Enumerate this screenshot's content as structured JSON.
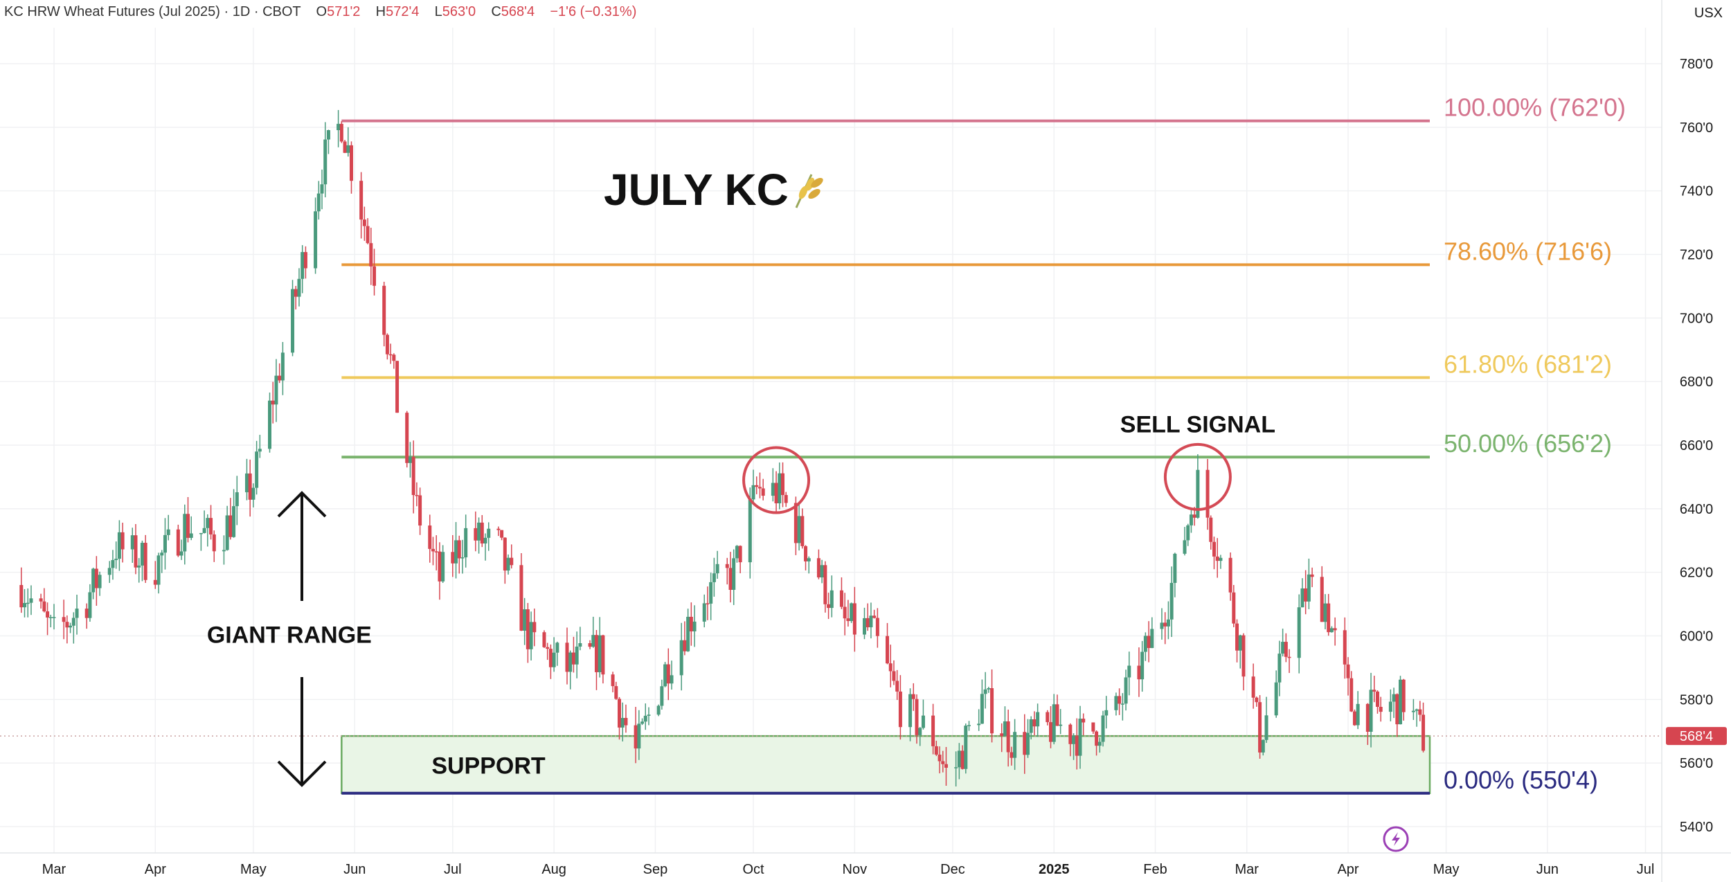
{
  "header": {
    "symbol_info": "KC HRW Wheat Futures (Jul 2025) · 1D · CBOT",
    "o_label": "O",
    "o_value": "571'2",
    "h_label": "H",
    "h_value": "572'4",
    "l_label": "L",
    "l_value": "563'0",
    "c_label": "C",
    "c_value": "568'4",
    "change": "−1'6 (−0.31%)"
  },
  "currency": "USX",
  "chart_data": {
    "type": "candlestick",
    "title": "JULY KC",
    "title_icon": "wheat-icon",
    "y_axis": {
      "ylim": [
        530,
        788
      ],
      "ticks": [
        "780'0",
        "760'0",
        "740'0",
        "720'0",
        "700'0",
        "680'0",
        "660'0",
        "640'0",
        "620'0",
        "600'0",
        "580'0",
        "560'0",
        "540'0"
      ]
    },
    "x_axis": {
      "labels": [
        {
          "label": "Mar",
          "date": "2024-03-01"
        },
        {
          "label": "Apr",
          "date": "2024-04-01"
        },
        {
          "label": "May",
          "date": "2024-05-01"
        },
        {
          "label": "Jun",
          "date": "2024-06-01"
        },
        {
          "label": "Jul",
          "date": "2024-07-01"
        },
        {
          "label": "Aug",
          "date": "2024-08-01"
        },
        {
          "label": "Sep",
          "date": "2024-09-01"
        },
        {
          "label": "Oct",
          "date": "2024-10-01"
        },
        {
          "label": "Nov",
          "date": "2024-11-01"
        },
        {
          "label": "Dec",
          "date": "2024-12-01"
        },
        {
          "label": "2025",
          "date": "2025-01-01",
          "bold": true
        },
        {
          "label": "Feb",
          "date": "2025-02-01"
        },
        {
          "label": "Mar",
          "date": "2025-03-01"
        },
        {
          "label": "Apr",
          "date": "2025-04-01"
        },
        {
          "label": "May",
          "date": "2025-05-01"
        },
        {
          "label": "Jun",
          "date": "2025-06-01"
        },
        {
          "label": "Jul",
          "date": "2025-07-01"
        }
      ]
    },
    "price_path": [
      [
        "2024-02-20",
        616
      ],
      [
        "2024-03-01",
        600
      ],
      [
        "2024-03-10",
        610
      ],
      [
        "2024-03-20",
        628
      ],
      [
        "2024-04-01",
        622
      ],
      [
        "2024-04-10",
        635
      ],
      [
        "2024-04-20",
        630
      ],
      [
        "2024-05-01",
        648
      ],
      [
        "2024-05-08",
        680
      ],
      [
        "2024-05-15",
        712
      ],
      [
        "2024-05-22",
        748
      ],
      [
        "2024-05-28",
        762
      ],
      [
        "2024-06-04",
        730
      ],
      [
        "2024-06-10",
        700
      ],
      [
        "2024-06-15",
        666
      ],
      [
        "2024-06-20",
        640
      ],
      [
        "2024-06-27",
        618
      ],
      [
        "2024-07-05",
        632
      ],
      [
        "2024-07-15",
        628
      ],
      [
        "2024-07-25",
        598
      ],
      [
        "2024-08-05",
        590
      ],
      [
        "2024-08-15",
        595
      ],
      [
        "2024-08-26",
        563
      ],
      [
        "2024-09-05",
        592
      ],
      [
        "2024-09-15",
        612
      ],
      [
        "2024-09-25",
        620
      ],
      [
        "2024-10-02",
        646
      ],
      [
        "2024-10-09",
        645
      ],
      [
        "2024-10-20",
        622
      ],
      [
        "2024-10-28",
        604
      ],
      [
        "2024-11-06",
        602
      ],
      [
        "2024-11-15",
        578
      ],
      [
        "2024-11-25",
        568
      ],
      [
        "2024-11-30",
        554
      ],
      [
        "2024-12-10",
        580
      ],
      [
        "2024-12-20",
        566
      ],
      [
        "2025-01-02",
        572
      ],
      [
        "2025-01-10",
        568
      ],
      [
        "2025-01-20",
        576
      ],
      [
        "2025-01-28",
        592
      ],
      [
        "2025-02-05",
        612
      ],
      [
        "2025-02-14",
        648
      ],
      [
        "2025-02-20",
        628
      ],
      [
        "2025-02-27",
        598
      ],
      [
        "2025-03-05",
        568
      ],
      [
        "2025-03-12",
        592
      ],
      [
        "2025-03-20",
        616
      ],
      [
        "2025-03-25",
        610
      ],
      [
        "2025-04-02",
        578
      ],
      [
        "2025-04-10",
        576
      ],
      [
        "2025-04-18",
        580
      ],
      [
        "2025-04-24",
        568
      ]
    ],
    "fib_levels": [
      {
        "label": "100.00% (762'0)",
        "value": 762.0,
        "color": "#d4748e"
      },
      {
        "label": "78.60% (716'6)",
        "value": 716.75,
        "color": "#e8993a"
      },
      {
        "label": "61.80% (681'2)",
        "value": 681.25,
        "color": "#efc95c"
      },
      {
        "label": "50.00% (656'2)",
        "value": 656.25,
        "color": "#7ab36d"
      },
      {
        "label": "0.00% (550'4)",
        "value": 550.5,
        "color": "#2a2a80"
      }
    ],
    "fib_range_dates": [
      "2024-05-28",
      "2025-04-26"
    ],
    "support_zone": {
      "label": "SUPPORT",
      "low": 550.5,
      "high": 568.5,
      "fill": "#e9f5e6",
      "border": "#6aaa60"
    },
    "annotations": [
      {
        "text": "SELL SIGNAL",
        "date": "2025-02-14",
        "price": 664
      },
      {
        "text": "GIANT RANGE",
        "date": "2024-05-12",
        "price": 600
      }
    ],
    "circles": [
      {
        "date": "2024-10-08",
        "price": 649
      },
      {
        "date": "2025-02-14",
        "price": 650
      }
    ],
    "last_price": {
      "label": "568'4",
      "value": 568.5,
      "color": "#d64550"
    },
    "colors": {
      "up": "#4a9a7d",
      "down": "#d64550"
    }
  }
}
